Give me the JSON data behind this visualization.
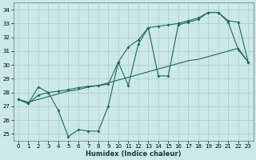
{
  "title": "",
  "xlabel": "Humidex (Indice chaleur)",
  "bg_color": "#cce8e8",
  "grid_color": "#aacccc",
  "line_color": "#1a6b5a",
  "xlim": [
    -0.5,
    23.5
  ],
  "ylim": [
    24.5,
    34.5
  ],
  "xticks": [
    0,
    1,
    2,
    3,
    4,
    5,
    6,
    7,
    8,
    9,
    10,
    11,
    12,
    13,
    14,
    15,
    16,
    17,
    18,
    19,
    20,
    21,
    22,
    23
  ],
  "yticks": [
    25,
    26,
    27,
    28,
    29,
    30,
    31,
    32,
    33,
    34
  ],
  "line1_x": [
    0,
    1,
    2,
    3,
    4,
    5,
    6,
    7,
    8,
    9,
    10,
    11,
    12,
    13,
    14,
    15,
    16,
    17,
    18,
    19,
    20,
    21,
    22,
    23
  ],
  "line1_y": [
    27.5,
    27.2,
    28.4,
    28.0,
    26.7,
    24.8,
    25.3,
    25.2,
    25.2,
    27.0,
    30.2,
    28.5,
    31.5,
    32.7,
    29.2,
    29.2,
    32.9,
    33.1,
    33.3,
    33.8,
    33.8,
    33.1,
    31.1,
    30.2
  ],
  "line2_x": [
    0,
    1,
    2,
    3,
    4,
    5,
    6,
    7,
    8,
    9,
    10,
    11,
    12,
    13,
    14,
    15,
    16,
    17,
    18,
    19,
    20,
    21,
    22,
    23
  ],
  "line2_y": [
    27.5,
    27.3,
    27.5,
    27.7,
    27.9,
    28.1,
    28.2,
    28.4,
    28.5,
    28.7,
    28.9,
    29.1,
    29.3,
    29.5,
    29.7,
    29.9,
    30.1,
    30.3,
    30.4,
    30.6,
    30.8,
    31.0,
    31.2,
    30.2
  ],
  "line3_x": [
    0,
    1,
    2,
    3,
    4,
    5,
    6,
    7,
    8,
    9,
    10,
    11,
    12,
    13,
    14,
    15,
    16,
    17,
    18,
    19,
    20,
    21,
    22,
    23
  ],
  "line3_y": [
    27.5,
    27.2,
    27.8,
    28.0,
    28.1,
    28.2,
    28.35,
    28.45,
    28.5,
    28.6,
    30.2,
    31.3,
    31.8,
    32.7,
    32.8,
    32.9,
    33.0,
    33.2,
    33.4,
    33.8,
    33.8,
    33.2,
    33.1,
    30.2
  ]
}
